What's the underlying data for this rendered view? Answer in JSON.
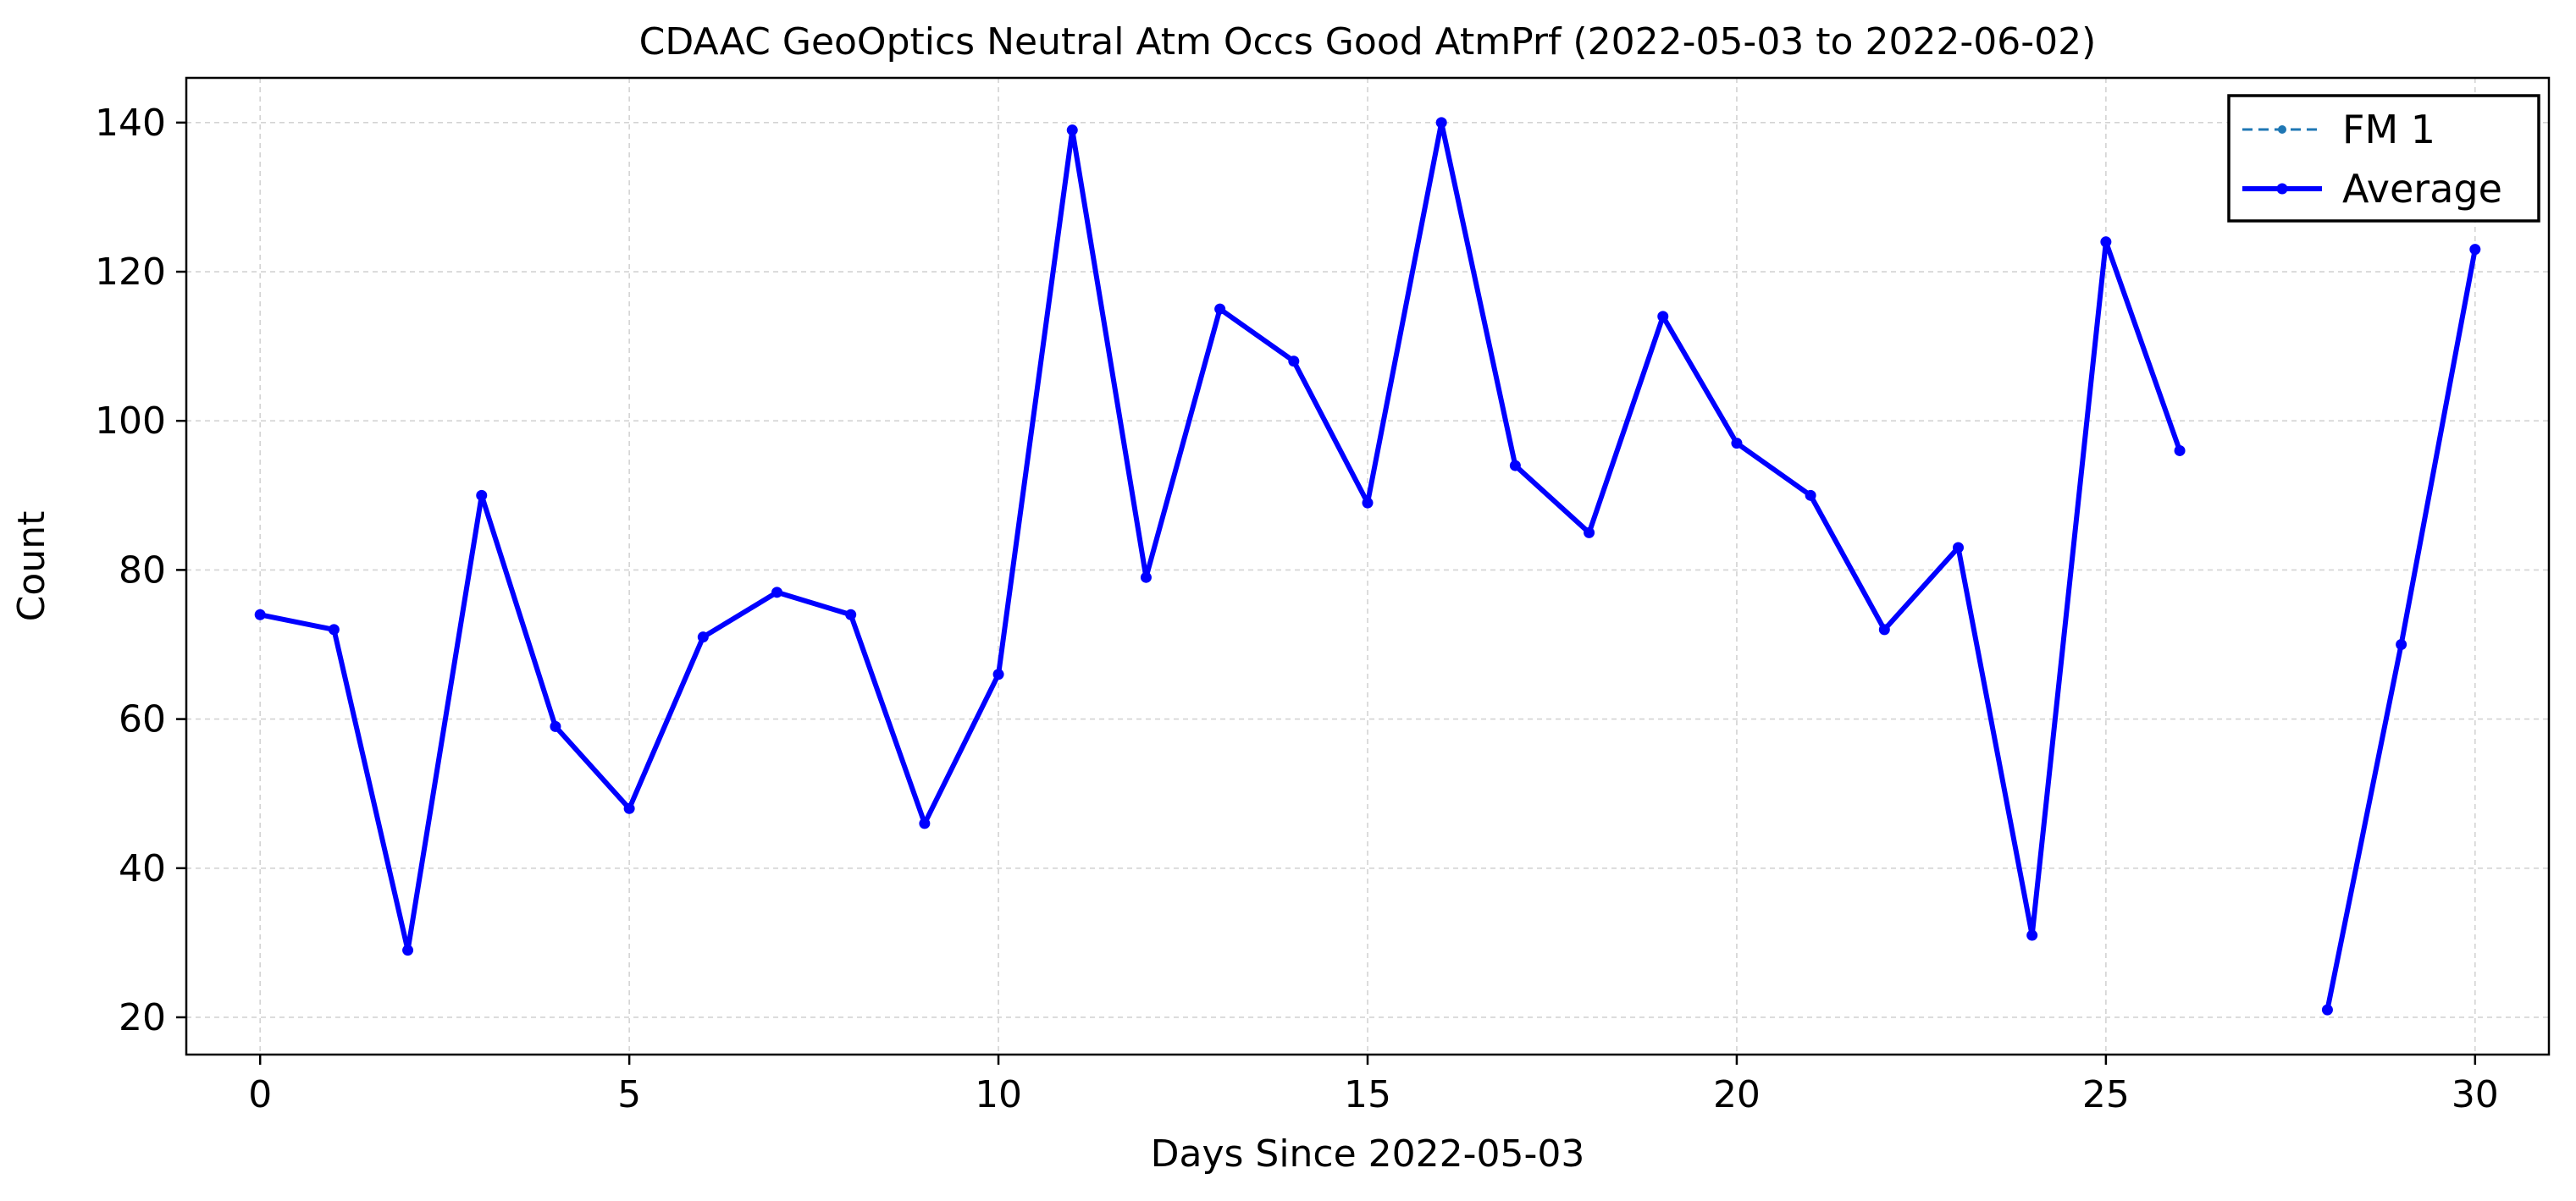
{
  "chart_data": {
    "type": "line",
    "title": "CDAAC GeoOptics Neutral Atm Occs Good AtmPrf (2022-05-03 to 2022-06-02)",
    "xlabel": "Days Since 2022-05-03",
    "ylabel": "Count",
    "xlim": [
      -1,
      31
    ],
    "ylim": [
      15,
      146
    ],
    "xticks": [
      0,
      5,
      10,
      15,
      20,
      25,
      30
    ],
    "yticks": [
      20,
      40,
      60,
      80,
      100,
      120,
      140
    ],
    "grid": true,
    "legend_position": "top-right",
    "series": [
      {
        "name": "FM 1",
        "color": "#1f77b4",
        "style": "dashed",
        "x": [
          0,
          1,
          2,
          3,
          4,
          5,
          6,
          7,
          8,
          9,
          10,
          11,
          12,
          13,
          14,
          15,
          16,
          17,
          18,
          19,
          20,
          21,
          22,
          23,
          24,
          25,
          26,
          27,
          28,
          29,
          30
        ],
        "y": [
          74,
          72,
          29,
          90,
          59,
          48,
          71,
          77,
          74,
          46,
          66,
          139,
          79,
          115,
          108,
          89,
          140,
          94,
          85,
          114,
          97,
          90,
          72,
          83,
          31,
          124,
          96,
          null,
          21,
          70,
          123
        ]
      },
      {
        "name": "Average",
        "color": "#0000ff",
        "style": "solid",
        "x": [
          0,
          1,
          2,
          3,
          4,
          5,
          6,
          7,
          8,
          9,
          10,
          11,
          12,
          13,
          14,
          15,
          16,
          17,
          18,
          19,
          20,
          21,
          22,
          23,
          24,
          25,
          26,
          27,
          28,
          29,
          30
        ],
        "y": [
          74,
          72,
          29,
          90,
          59,
          48,
          71,
          77,
          74,
          46,
          66,
          139,
          79,
          115,
          108,
          89,
          140,
          94,
          85,
          114,
          97,
          90,
          72,
          83,
          31,
          124,
          96,
          null,
          21,
          70,
          123
        ]
      }
    ]
  }
}
